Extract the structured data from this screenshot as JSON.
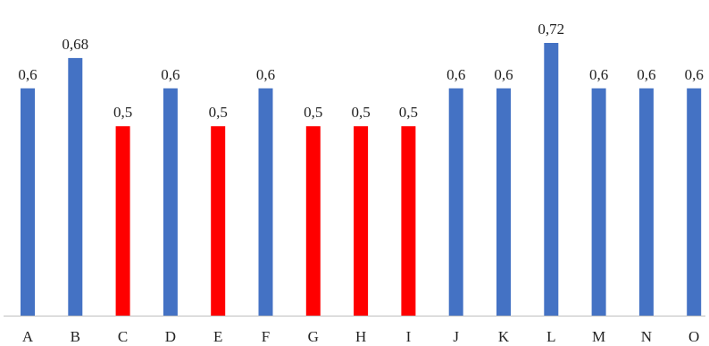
{
  "chart_data": {
    "type": "bar",
    "title": "",
    "xlabel": "",
    "ylabel": "",
    "ylim": [
      0,
      0.72
    ],
    "grid": false,
    "categories": [
      "A",
      "B",
      "C",
      "D",
      "E",
      "F",
      "G",
      "H",
      "I",
      "J",
      "K",
      "L",
      "M",
      "N",
      "O"
    ],
    "values": [
      0.6,
      0.68,
      0.5,
      0.6,
      0.5,
      0.6,
      0.5,
      0.5,
      0.5,
      0.6,
      0.6,
      0.72,
      0.6,
      0.6,
      0.6
    ],
    "data_labels": [
      "0,6",
      "0,68",
      "0,5",
      "0,6",
      "0,5",
      "0,6",
      "0,5",
      "0,5",
      "0,5",
      "0,6",
      "0,6",
      "0,72",
      "0,6",
      "0,6",
      "0,6"
    ],
    "colors": {
      "default": "#4472C4",
      "highlight": "#FF0000",
      "axis": "#BFBFBF"
    },
    "highlighted_categories": [
      "C",
      "E",
      "G",
      "H",
      "I"
    ]
  }
}
